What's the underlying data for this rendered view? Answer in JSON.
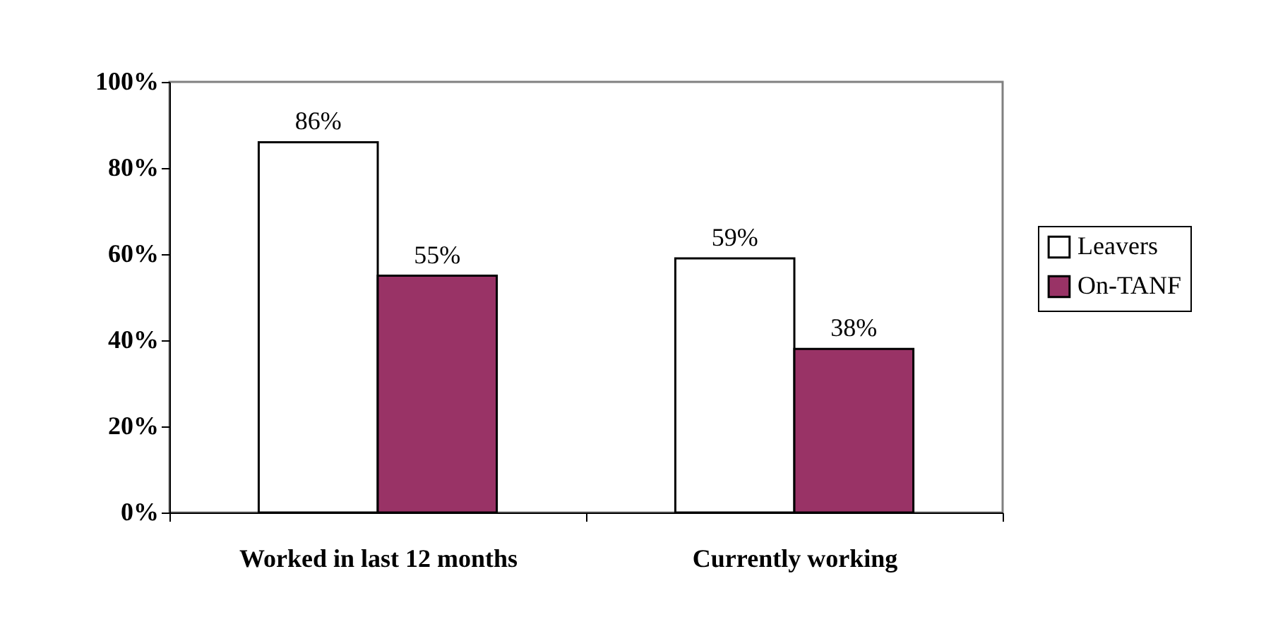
{
  "chart_data": {
    "type": "bar",
    "categories": [
      "Worked in last 12 months",
      "Currently working"
    ],
    "series": [
      {
        "name": "Leavers",
        "color": "#ffffff",
        "values": [
          86,
          59
        ],
        "value_labels": [
          "86%",
          "59%"
        ]
      },
      {
        "name": "On-TANF",
        "color": "#993366",
        "values": [
          55,
          38
        ],
        "value_labels": [
          "55%",
          "38%"
        ]
      }
    ],
    "ylim": [
      0,
      100
    ],
    "yticks": [
      {
        "value": 0,
        "label": "0%"
      },
      {
        "value": 20,
        "label": "20%"
      },
      {
        "value": 40,
        "label": "40%"
      },
      {
        "value": 60,
        "label": "60%"
      },
      {
        "value": 80,
        "label": "80%"
      },
      {
        "value": 100,
        "label": "100%"
      }
    ],
    "grid": false,
    "legend": "right"
  }
}
